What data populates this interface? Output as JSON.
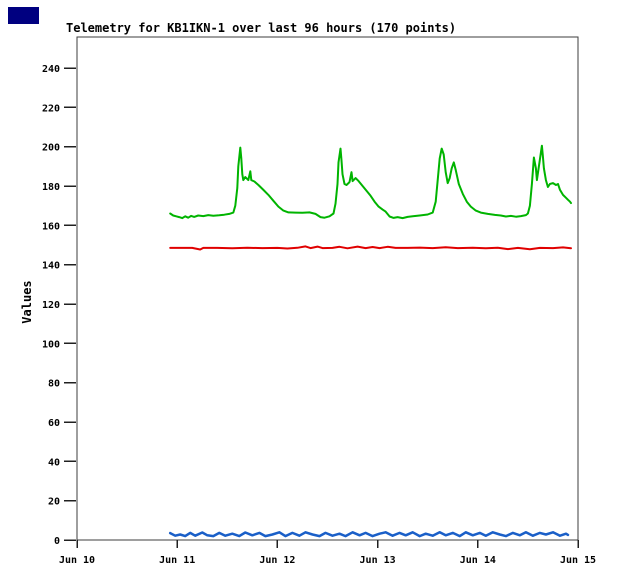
{
  "decor": {
    "corner_box_color": "#000080",
    "background_color": "#ffffff",
    "plot_border_color": "#3c3c3c",
    "tick_color": "#202020",
    "text_color": "#000000"
  },
  "chart_data": {
    "type": "line",
    "title": "Telemetry for KB1IKN-1 over last 96 hours (170 points)",
    "ylabel": "Values",
    "xlabel": "",
    "grid": false,
    "legend_position": "none",
    "ylim": [
      0,
      256
    ],
    "xlim_days": [
      0,
      5
    ],
    "y_ticks": [
      0,
      20,
      40,
      60,
      80,
      100,
      120,
      140,
      160,
      180,
      200,
      220,
      240
    ],
    "x_ticks": [
      {
        "pos": 0,
        "label": "Jun 10"
      },
      {
        "pos": 1,
        "label": "Jun 11"
      },
      {
        "pos": 2,
        "label": "Jun 12"
      },
      {
        "pos": 3,
        "label": "Jun 13"
      },
      {
        "pos": 4,
        "label": "Jun 14"
      },
      {
        "pos": 5,
        "label": "Jun 15"
      }
    ],
    "series": [
      {
        "name": "green-channel",
        "color": "#00b400",
        "width": 2,
        "points": [
          [
            0.93,
            166
          ],
          [
            0.96,
            165
          ],
          [
            0.99,
            164.6
          ],
          [
            1.02,
            164.2
          ],
          [
            1.05,
            163.7
          ],
          [
            1.08,
            164.6
          ],
          [
            1.11,
            163.9
          ],
          [
            1.14,
            164.8
          ],
          [
            1.17,
            164.3
          ],
          [
            1.21,
            165
          ],
          [
            1.26,
            164.7
          ],
          [
            1.31,
            165.2
          ],
          [
            1.36,
            164.9
          ],
          [
            1.42,
            165.1
          ],
          [
            1.47,
            165.4
          ],
          [
            1.52,
            165.8
          ],
          [
            1.56,
            166.5
          ],
          [
            1.58,
            170
          ],
          [
            1.6,
            179
          ],
          [
            1.61,
            190
          ],
          [
            1.63,
            199.5
          ],
          [
            1.64,
            194
          ],
          [
            1.65,
            186
          ],
          [
            1.66,
            183
          ],
          [
            1.68,
            184.5
          ],
          [
            1.7,
            183.5
          ],
          [
            1.71,
            183
          ],
          [
            1.73,
            187.5
          ],
          [
            1.74,
            183
          ],
          [
            1.77,
            182.3
          ],
          [
            1.81,
            180.5
          ],
          [
            1.86,
            178
          ],
          [
            1.91,
            175.5
          ],
          [
            1.96,
            172.5
          ],
          [
            2.01,
            169.5
          ],
          [
            2.06,
            167.5
          ],
          [
            2.11,
            166.6
          ],
          [
            2.18,
            166.5
          ],
          [
            2.25,
            166.4
          ],
          [
            2.32,
            166.6
          ],
          [
            2.38,
            165.8
          ],
          [
            2.43,
            164.2
          ],
          [
            2.47,
            163.9
          ],
          [
            2.52,
            164.6
          ],
          [
            2.56,
            166
          ],
          [
            2.58,
            171
          ],
          [
            2.6,
            181
          ],
          [
            2.61,
            192
          ],
          [
            2.63,
            199
          ],
          [
            2.64,
            193
          ],
          [
            2.65,
            186
          ],
          [
            2.67,
            181
          ],
          [
            2.69,
            180.5
          ],
          [
            2.72,
            182
          ],
          [
            2.74,
            187
          ],
          [
            2.75,
            182.5
          ],
          [
            2.78,
            184
          ],
          [
            2.81,
            182.5
          ],
          [
            2.85,
            180
          ],
          [
            2.89,
            177.5
          ],
          [
            2.93,
            175
          ],
          [
            2.97,
            172
          ],
          [
            3.01,
            169.5
          ],
          [
            3.05,
            168
          ],
          [
            3.08,
            167
          ],
          [
            3.12,
            164.5
          ],
          [
            3.16,
            163.8
          ],
          [
            3.2,
            164.2
          ],
          [
            3.25,
            163.7
          ],
          [
            3.3,
            164.3
          ],
          [
            3.35,
            164.6
          ],
          [
            3.42,
            165
          ],
          [
            3.5,
            165.5
          ],
          [
            3.55,
            166.5
          ],
          [
            3.58,
            172
          ],
          [
            3.6,
            183
          ],
          [
            3.62,
            194
          ],
          [
            3.64,
            199
          ],
          [
            3.66,
            196
          ],
          [
            3.68,
            187
          ],
          [
            3.7,
            181.5
          ],
          [
            3.72,
            184
          ],
          [
            3.74,
            189
          ],
          [
            3.76,
            192
          ],
          [
            3.78,
            188
          ],
          [
            3.81,
            181
          ],
          [
            3.85,
            176
          ],
          [
            3.89,
            172
          ],
          [
            3.93,
            169.5
          ],
          [
            3.98,
            167.5
          ],
          [
            4.03,
            166.5
          ],
          [
            4.1,
            165.8
          ],
          [
            4.17,
            165.3
          ],
          [
            4.23,
            165
          ],
          [
            4.28,
            164.5
          ],
          [
            4.33,
            164.8
          ],
          [
            4.38,
            164.4
          ],
          [
            4.43,
            164.7
          ],
          [
            4.48,
            165.2
          ],
          [
            4.5,
            166
          ],
          [
            4.52,
            170
          ],
          [
            4.54,
            181
          ],
          [
            4.56,
            194.5
          ],
          [
            4.58,
            189
          ],
          [
            4.59,
            183
          ],
          [
            4.61,
            190
          ],
          [
            4.64,
            200.5
          ],
          [
            4.65,
            195
          ],
          [
            4.66,
            189
          ],
          [
            4.68,
            183
          ],
          [
            4.7,
            179.5
          ],
          [
            4.72,
            181
          ],
          [
            4.75,
            181.5
          ],
          [
            4.78,
            180.5
          ],
          [
            4.8,
            181
          ],
          [
            4.82,
            178
          ],
          [
            4.85,
            175.5
          ],
          [
            4.88,
            174
          ],
          [
            4.9,
            173
          ],
          [
            4.92,
            172
          ],
          [
            4.93,
            171.3
          ]
        ]
      },
      {
        "name": "red-channel",
        "color": "#e00000",
        "width": 2,
        "points": [
          [
            0.93,
            148.5
          ],
          [
            1.05,
            148.5
          ],
          [
            1.15,
            148.5
          ],
          [
            1.23,
            147.7
          ],
          [
            1.26,
            148.5
          ],
          [
            1.4,
            148.5
          ],
          [
            1.55,
            148.3
          ],
          [
            1.7,
            148.6
          ],
          [
            1.85,
            148.4
          ],
          [
            2.0,
            148.5
          ],
          [
            2.1,
            148.2
          ],
          [
            2.2,
            148.6
          ],
          [
            2.28,
            149.3
          ],
          [
            2.33,
            148.4
          ],
          [
            2.4,
            149.2
          ],
          [
            2.45,
            148.4
          ],
          [
            2.55,
            148.5
          ],
          [
            2.62,
            149.1
          ],
          [
            2.7,
            148.3
          ],
          [
            2.8,
            149.2
          ],
          [
            2.88,
            148.4
          ],
          [
            2.95,
            149.0
          ],
          [
            3.02,
            148.4
          ],
          [
            3.1,
            149.1
          ],
          [
            3.18,
            148.5
          ],
          [
            3.3,
            148.5
          ],
          [
            3.42,
            148.7
          ],
          [
            3.55,
            148.4
          ],
          [
            3.68,
            148.9
          ],
          [
            3.8,
            148.4
          ],
          [
            3.95,
            148.6
          ],
          [
            4.08,
            148.3
          ],
          [
            4.2,
            148.6
          ],
          [
            4.3,
            147.9
          ],
          [
            4.4,
            148.5
          ],
          [
            4.52,
            147.8
          ],
          [
            4.62,
            148.5
          ],
          [
            4.75,
            148.4
          ],
          [
            4.85,
            148.8
          ],
          [
            4.93,
            148.3
          ]
        ]
      },
      {
        "name": "blue-channel",
        "color": "#1a5fc8",
        "width": 2.5,
        "points": [
          [
            0.93,
            3.5
          ],
          [
            0.98,
            2.2
          ],
          [
            1.03,
            2.8
          ],
          [
            1.08,
            2.0
          ],
          [
            1.13,
            3.6
          ],
          [
            1.18,
            2.2
          ],
          [
            1.25,
            3.8
          ],
          [
            1.3,
            2.4
          ],
          [
            1.36,
            2.0
          ],
          [
            1.42,
            3.6
          ],
          [
            1.48,
            2.2
          ],
          [
            1.55,
            3.2
          ],
          [
            1.62,
            2.0
          ],
          [
            1.68,
            3.8
          ],
          [
            1.75,
            2.4
          ],
          [
            1.82,
            3.6
          ],
          [
            1.88,
            2.0
          ],
          [
            1.95,
            2.8
          ],
          [
            2.02,
            3.9
          ],
          [
            2.08,
            2.0
          ],
          [
            2.15,
            3.6
          ],
          [
            2.22,
            2.2
          ],
          [
            2.28,
            3.9
          ],
          [
            2.35,
            2.8
          ],
          [
            2.42,
            2.0
          ],
          [
            2.48,
            3.6
          ],
          [
            2.55,
            2.2
          ],
          [
            2.62,
            3.2
          ],
          [
            2.68,
            2.0
          ],
          [
            2.75,
            3.9
          ],
          [
            2.82,
            2.4
          ],
          [
            2.88,
            3.6
          ],
          [
            2.95,
            2.0
          ],
          [
            3.02,
            3.2
          ],
          [
            3.08,
            3.9
          ],
          [
            3.15,
            2.2
          ],
          [
            3.22,
            3.6
          ],
          [
            3.28,
            2.4
          ],
          [
            3.35,
            3.9
          ],
          [
            3.42,
            2.0
          ],
          [
            3.48,
            3.2
          ],
          [
            3.55,
            2.2
          ],
          [
            3.62,
            3.9
          ],
          [
            3.68,
            2.4
          ],
          [
            3.75,
            3.6
          ],
          [
            3.82,
            2.0
          ],
          [
            3.88,
            3.9
          ],
          [
            3.95,
            2.4
          ],
          [
            4.02,
            3.6
          ],
          [
            4.08,
            2.2
          ],
          [
            4.15,
            3.9
          ],
          [
            4.22,
            2.8
          ],
          [
            4.28,
            2.0
          ],
          [
            4.35,
            3.6
          ],
          [
            4.42,
            2.4
          ],
          [
            4.48,
            3.9
          ],
          [
            4.55,
            2.2
          ],
          [
            4.62,
            3.6
          ],
          [
            4.68,
            2.8
          ],
          [
            4.75,
            3.9
          ],
          [
            4.82,
            2.2
          ],
          [
            4.88,
            3.2
          ],
          [
            4.9,
            2.6
          ]
        ]
      }
    ]
  }
}
